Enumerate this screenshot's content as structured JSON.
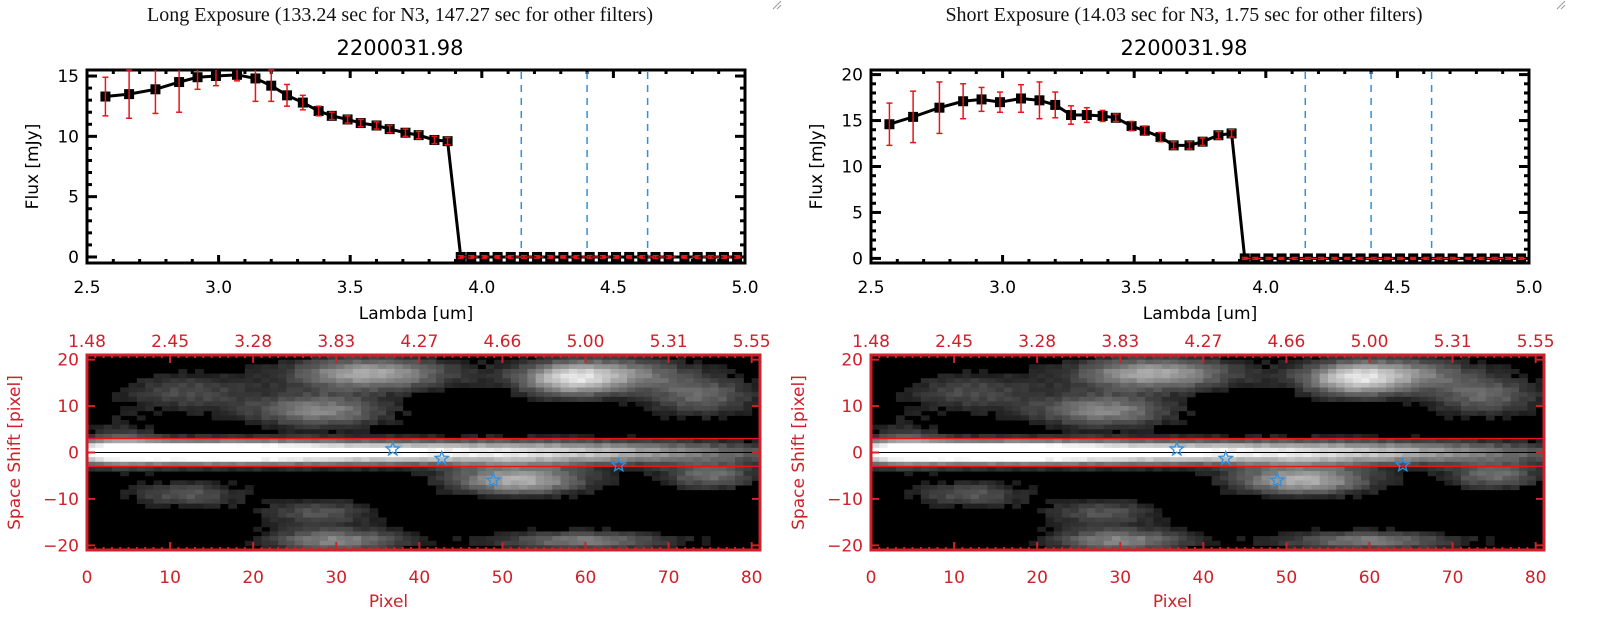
{
  "panels": [
    {
      "exposure_title": "Long Exposure (133.24 sec for N3, 147.27 sec for other filters)",
      "object_title": "2200031.98"
    },
    {
      "exposure_title": "Short Exposure (14.03 sec for N3, 1.75 sec for other filters)",
      "object_title": "2200031.98"
    }
  ],
  "chart_data": [
    {
      "type": "line",
      "title": "2200031.98",
      "subtitle": "Long Exposure (133.24 sec for N3, 147.27 sec for other filters)",
      "xlabel": "Lambda [um]",
      "ylabel": "Flux [mJy]",
      "xlim": [
        2.5,
        5.0
      ],
      "ylim": [
        -0.5,
        15.5
      ],
      "xticks": [
        "2.5",
        "3.0",
        "3.5",
        "4.0",
        "4.5",
        "5.0"
      ],
      "yticks": [
        "0",
        "5",
        "10",
        "15"
      ],
      "x": [
        2.57,
        2.66,
        2.76,
        2.85,
        2.92,
        2.99,
        3.07,
        3.14,
        3.2,
        3.26,
        3.32,
        3.38,
        3.43,
        3.49,
        3.54,
        3.6,
        3.65,
        3.71,
        3.76,
        3.82,
        3.87,
        3.92,
        3.96,
        4.01,
        4.06,
        4.11,
        4.16,
        4.21,
        4.26,
        4.31,
        4.36,
        4.41,
        4.46,
        4.51,
        4.56,
        4.61,
        4.66,
        4.71,
        4.77,
        4.82,
        4.87,
        4.92,
        4.97
      ],
      "values": [
        13.3,
        13.5,
        13.9,
        14.5,
        14.9,
        15.0,
        15.1,
        14.8,
        14.2,
        13.4,
        12.8,
        12.1,
        11.7,
        11.4,
        11.1,
        10.9,
        10.6,
        10.3,
        10.1,
        9.7,
        9.6,
        0,
        0,
        0,
        0,
        0,
        0,
        0,
        0,
        0,
        0,
        0,
        0,
        0,
        0,
        0,
        0,
        0,
        0,
        0,
        0,
        0,
        0
      ],
      "errors": [
        1.6,
        2.0,
        2.0,
        2.5,
        1.0,
        0.8,
        0.5,
        1.9,
        1.3,
        0.9,
        0.6,
        0.4,
        0.3,
        0.3,
        0.3,
        0.3,
        0.3,
        0.3,
        0.3,
        0.3,
        0.3,
        0.1,
        0.1,
        0.1,
        0.1,
        0.1,
        0.1,
        0.1,
        0.1,
        0.1,
        0.1,
        0.1,
        0.1,
        0.1,
        0.1,
        0.1,
        0.1,
        0.1,
        0.1,
        0.1,
        0.1,
        0.1,
        0.1
      ],
      "vlines": [
        4.15,
        4.4,
        4.63
      ],
      "zero_line": 0,
      "series_color": "#000000",
      "error_color": "#e8161a",
      "vline_color": "#2f8fe0"
    },
    {
      "type": "line",
      "title": "2200031.98",
      "subtitle": "Short Exposure (14.03 sec for N3, 1.75 sec for other filters)",
      "xlabel": "Lambda [um]",
      "ylabel": "Flux [mJy]",
      "xlim": [
        2.5,
        5.0
      ],
      "ylim": [
        -0.5,
        20.5
      ],
      "xticks": [
        "2.5",
        "3.0",
        "3.5",
        "4.0",
        "4.5",
        "5.0"
      ],
      "yticks": [
        "0",
        "5",
        "10",
        "15",
        "20"
      ],
      "x": [
        2.57,
        2.66,
        2.76,
        2.85,
        2.92,
        2.99,
        3.07,
        3.14,
        3.2,
        3.26,
        3.32,
        3.38,
        3.43,
        3.49,
        3.54,
        3.6,
        3.65,
        3.71,
        3.76,
        3.82,
        3.87,
        3.92,
        3.96,
        4.01,
        4.06,
        4.11,
        4.16,
        4.21,
        4.26,
        4.31,
        4.36,
        4.41,
        4.46,
        4.51,
        4.56,
        4.61,
        4.66,
        4.71,
        4.77,
        4.82,
        4.87,
        4.92,
        4.97
      ],
      "values": [
        14.6,
        15.4,
        16.4,
        17.1,
        17.3,
        17.0,
        17.4,
        17.2,
        16.7,
        15.6,
        15.6,
        15.5,
        15.3,
        14.4,
        13.9,
        13.2,
        12.3,
        12.3,
        12.7,
        13.4,
        13.6,
        0,
        0,
        0,
        0,
        0,
        0,
        0,
        0,
        0,
        0,
        0,
        0,
        0,
        0,
        0,
        0,
        0,
        0,
        0,
        0,
        0,
        0
      ],
      "errors": [
        2.3,
        2.8,
        2.8,
        1.9,
        1.3,
        1.1,
        1.5,
        2.0,
        1.4,
        1.0,
        0.8,
        0.6,
        0.4,
        0.5,
        0.5,
        0.5,
        0.4,
        0.4,
        0.4,
        0.4,
        0.4,
        0.1,
        0.1,
        0.1,
        0.1,
        0.1,
        0.1,
        0.1,
        0.1,
        0.1,
        0.1,
        0.1,
        0.1,
        0.1,
        0.1,
        0.1,
        0.1,
        0.1,
        0.1,
        0.1,
        0.1,
        0.1,
        0.1
      ],
      "vlines": [
        4.15,
        4.4,
        4.63
      ],
      "zero_line": 0,
      "series_color": "#000000",
      "error_color": "#e8161a",
      "vline_color": "#2f8fe0"
    },
    {
      "type": "heatmap",
      "title": "",
      "xlabel": "Pixel",
      "ylabel": "Space Shift [pixel]",
      "xlim": [
        0,
        81
      ],
      "ylim": [
        -21,
        21
      ],
      "xticks": [
        "0",
        "10",
        "20",
        "30",
        "40",
        "50",
        "60",
        "70",
        "80"
      ],
      "yticks": [
        "-20",
        "-10",
        "0",
        "10",
        "20"
      ],
      "top_axis_ticks": [
        "1.48",
        "2.45",
        "3.28",
        "3.83",
        "4.27",
        "4.66",
        "5.00",
        "5.31",
        "5.55"
      ],
      "aperture_lines": [
        3,
        -3
      ],
      "center_line": 0,
      "stars": [
        [
          36.8,
          0.7
        ],
        [
          42.7,
          -1.3
        ],
        [
          48.9,
          -6.0
        ],
        [
          64.0,
          -2.7
        ]
      ],
      "axis_color": "#d0202a",
      "star_color": "#2f8fe0"
    },
    {
      "type": "heatmap",
      "title": "",
      "xlabel": "Pixel",
      "ylabel": "Space Shift [pixel]",
      "xlim": [
        0,
        81
      ],
      "ylim": [
        -21,
        21
      ],
      "xticks": [
        "0",
        "10",
        "20",
        "30",
        "40",
        "50",
        "60",
        "70",
        "80"
      ],
      "yticks": [
        "-20",
        "-10",
        "0",
        "10",
        "20"
      ],
      "top_axis_ticks": [
        "1.48",
        "2.45",
        "3.28",
        "3.83",
        "4.27",
        "4.66",
        "5.00",
        "5.31",
        "5.55"
      ],
      "aperture_lines": [
        3,
        -3
      ],
      "center_line": 0,
      "stars": [
        [
          36.8,
          0.7
        ],
        [
          42.7,
          -1.3
        ],
        [
          48.9,
          -6.0
        ],
        [
          64.0,
          -2.7
        ]
      ],
      "axis_color": "#d0202a",
      "star_color": "#2f8fe0"
    }
  ]
}
